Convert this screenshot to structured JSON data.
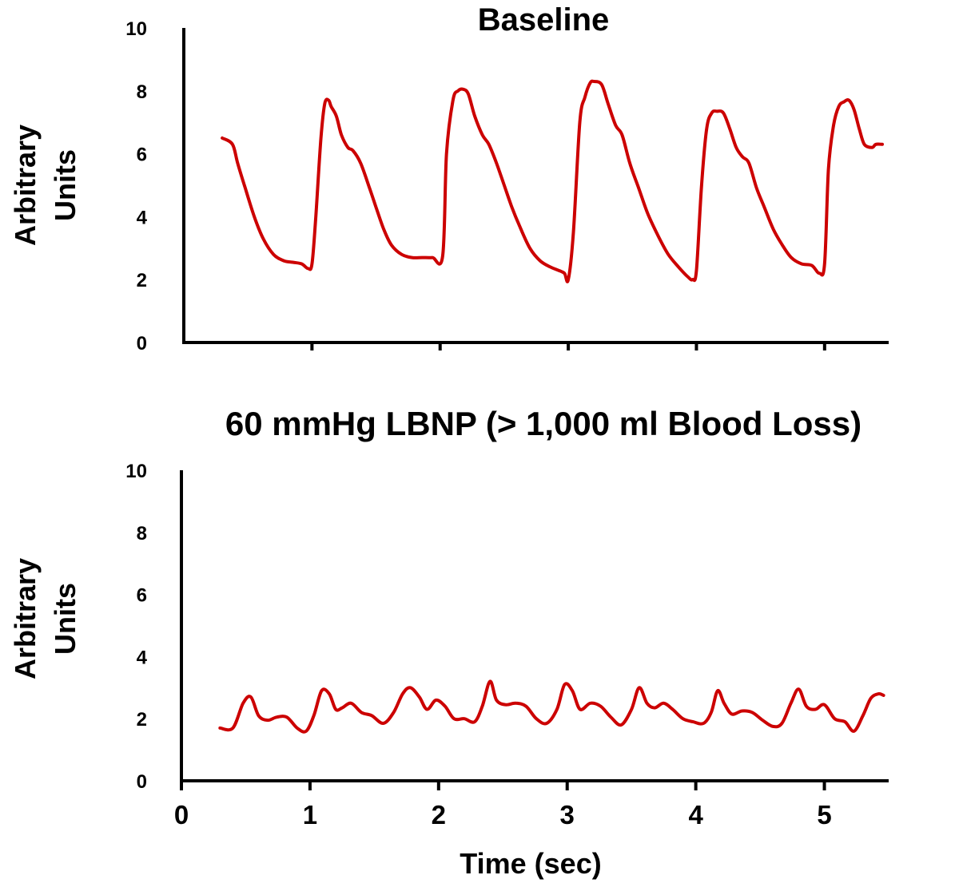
{
  "chart_data": [
    {
      "type": "line",
      "title": "Baseline",
      "xlabel": "",
      "ylabel": [
        "Arbitrary",
        "Units"
      ],
      "xlim": [
        0,
        5.5
      ],
      "ylim": [
        0,
        10
      ],
      "yticks": [
        0,
        2,
        4,
        6,
        8,
        10
      ],
      "xticks": [
        1,
        2,
        3,
        4,
        5
      ],
      "show_xtick_labels": false,
      "grid": false,
      "series": [
        {
          "name": "Baseline",
          "color": "#cc0000",
          "x": [
            0.3,
            0.38,
            0.42,
            0.48,
            0.55,
            0.62,
            0.7,
            0.78,
            0.85,
            0.92,
            0.97,
            1.0,
            1.03,
            1.07,
            1.1,
            1.13,
            1.15,
            1.19,
            1.23,
            1.28,
            1.32,
            1.38,
            1.45,
            1.5,
            1.56,
            1.62,
            1.7,
            1.78,
            1.86,
            1.94,
            2.02,
            2.05,
            2.1,
            2.14,
            2.18,
            2.22,
            2.27,
            2.33,
            2.38,
            2.44,
            2.5,
            2.56,
            2.62,
            2.7,
            2.78,
            2.86,
            2.92,
            2.97,
            3.0,
            3.04,
            3.09,
            3.13,
            3.17,
            3.2,
            3.26,
            3.31,
            3.37,
            3.42,
            3.48,
            3.55,
            3.62,
            3.7,
            3.78,
            3.86,
            3.93,
            3.97,
            4.0,
            4.04,
            4.08,
            4.12,
            4.16,
            4.21,
            4.26,
            4.31,
            4.36,
            4.41,
            4.47,
            4.53,
            4.6,
            4.67,
            4.74,
            4.82,
            4.9,
            4.96,
            5.0,
            5.03,
            5.07,
            5.11,
            5.15,
            5.19,
            5.23,
            5.27,
            5.31,
            5.37,
            5.4,
            5.45
          ],
          "y": [
            6.5,
            6.3,
            5.7,
            4.9,
            4.0,
            3.3,
            2.8,
            2.6,
            2.55,
            2.5,
            2.35,
            2.5,
            4.0,
            6.5,
            7.6,
            7.7,
            7.5,
            7.2,
            6.6,
            6.2,
            6.1,
            5.7,
            4.9,
            4.3,
            3.6,
            3.1,
            2.8,
            2.7,
            2.7,
            2.7,
            2.75,
            6.0,
            7.7,
            8.0,
            8.05,
            7.9,
            7.2,
            6.6,
            6.3,
            5.7,
            5.0,
            4.3,
            3.7,
            3.0,
            2.6,
            2.4,
            2.3,
            2.2,
            2.0,
            3.5,
            7.0,
            7.8,
            8.25,
            8.3,
            8.2,
            7.6,
            6.9,
            6.6,
            5.7,
            4.9,
            4.1,
            3.4,
            2.8,
            2.4,
            2.1,
            2.0,
            2.3,
            5.0,
            6.8,
            7.3,
            7.35,
            7.3,
            6.8,
            6.2,
            5.9,
            5.7,
            4.9,
            4.3,
            3.6,
            3.1,
            2.7,
            2.5,
            2.45,
            2.2,
            2.5,
            5.5,
            6.9,
            7.5,
            7.65,
            7.7,
            7.4,
            6.8,
            6.3,
            6.2,
            6.3,
            6.3
          ]
        }
      ]
    },
    {
      "type": "line",
      "title": "60 mmHg LBNP (> 1,000 ml Blood Loss)",
      "xlabel": "Time (sec)",
      "ylabel": [
        "Arbitrary",
        "Units"
      ],
      "xlim": [
        0,
        5.5
      ],
      "ylim": [
        0,
        10
      ],
      "yticks": [
        0,
        2,
        4,
        6,
        8,
        10
      ],
      "xticks": [
        0,
        1,
        2,
        3,
        4,
        5
      ],
      "xtick_labels": [
        "0",
        "1",
        "2",
        "3",
        "4",
        "5"
      ],
      "show_xtick_labels": true,
      "grid": false,
      "series": [
        {
          "name": "60 mmHg LBNP",
          "color": "#cc0000",
          "x": [
            0.3,
            0.4,
            0.48,
            0.54,
            0.6,
            0.67,
            0.74,
            0.82,
            0.9,
            0.97,
            1.03,
            1.09,
            1.15,
            1.2,
            1.25,
            1.32,
            1.4,
            1.48,
            1.57,
            1.65,
            1.72,
            1.78,
            1.85,
            1.91,
            1.98,
            2.05,
            2.12,
            2.2,
            2.28,
            2.34,
            2.4,
            2.45,
            2.52,
            2.6,
            2.68,
            2.76,
            2.84,
            2.92,
            2.98,
            3.04,
            3.1,
            3.18,
            3.26,
            3.34,
            3.42,
            3.5,
            3.56,
            3.62,
            3.68,
            3.75,
            3.82,
            3.9,
            3.98,
            4.06,
            4.12,
            4.17,
            4.22,
            4.28,
            4.36,
            4.44,
            4.52,
            4.6,
            4.67,
            4.74,
            4.8,
            4.86,
            4.93,
            5.0,
            5.08,
            5.16,
            5.23,
            5.3,
            5.36,
            5.42,
            5.46
          ],
          "y": [
            1.7,
            1.7,
            2.5,
            2.7,
            2.1,
            1.95,
            2.05,
            2.05,
            1.7,
            1.6,
            2.1,
            2.9,
            2.8,
            2.3,
            2.35,
            2.5,
            2.2,
            2.1,
            1.85,
            2.2,
            2.8,
            3.0,
            2.7,
            2.3,
            2.6,
            2.4,
            2.0,
            2.0,
            1.9,
            2.4,
            3.2,
            2.6,
            2.45,
            2.5,
            2.4,
            2.0,
            1.85,
            2.3,
            3.1,
            2.9,
            2.3,
            2.5,
            2.4,
            2.05,
            1.8,
            2.3,
            3.0,
            2.5,
            2.35,
            2.5,
            2.3,
            2.0,
            1.9,
            1.85,
            2.2,
            2.9,
            2.5,
            2.15,
            2.25,
            2.2,
            1.95,
            1.75,
            1.85,
            2.5,
            2.95,
            2.4,
            2.3,
            2.45,
            2.0,
            1.9,
            1.6,
            2.1,
            2.65,
            2.8,
            2.75
          ]
        }
      ]
    }
  ]
}
